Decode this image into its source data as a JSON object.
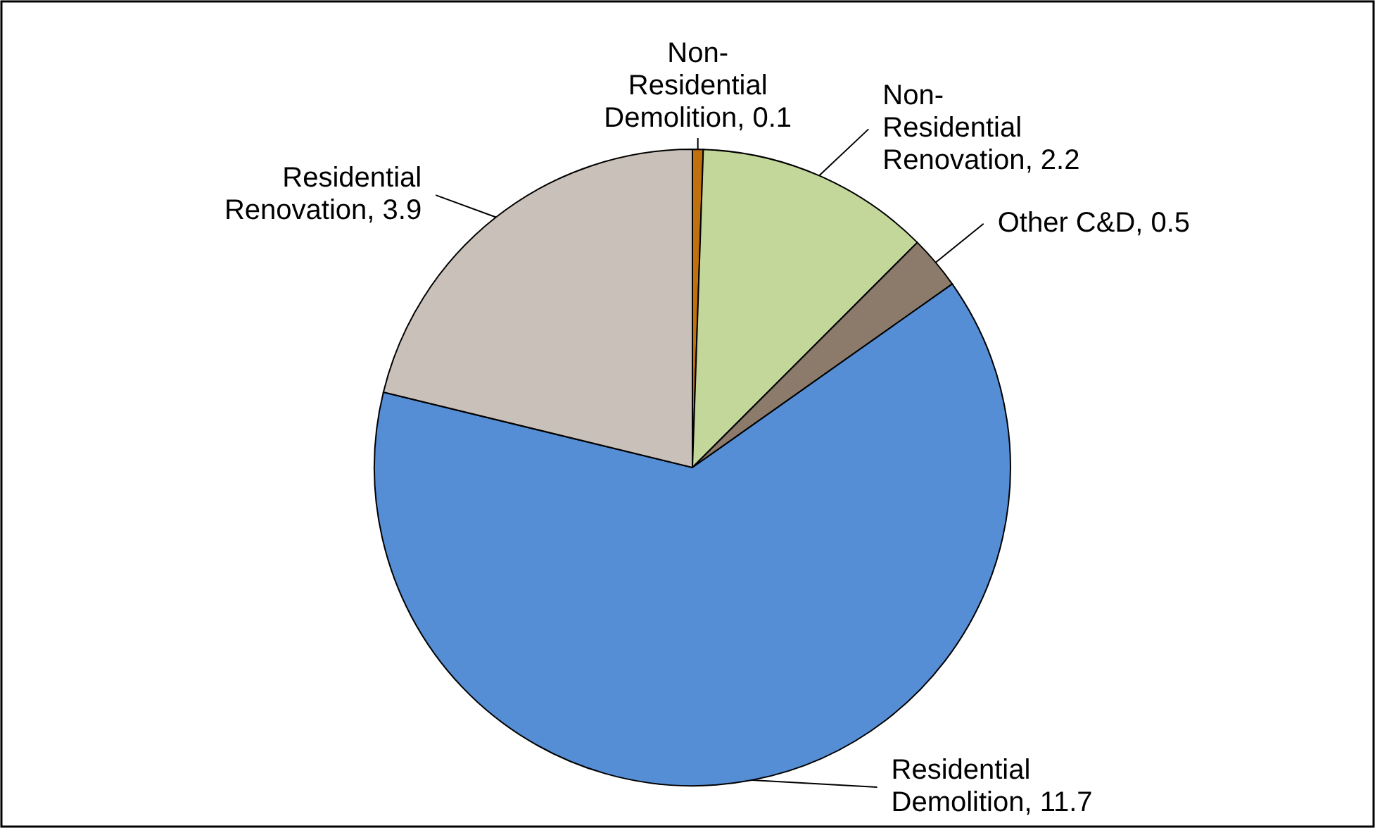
{
  "chart_data": {
    "type": "pie",
    "categories": [
      "Non-Residential Demolition",
      "Non-Residential Renovation",
      "Other C&D",
      "Residential Demolition",
      "Residential Renovation"
    ],
    "values": [
      0.1,
      2.2,
      0.5,
      11.7,
      3.9
    ],
    "colors": [
      "#c0700c",
      "#c4d79b",
      "#8c7b6b",
      "#558ed5",
      "#c9c1b9"
    ],
    "value_labels": [
      ", 0.1",
      ", 2.2",
      ", 0.5",
      ", 11.7",
      ", 3.9"
    ]
  }
}
